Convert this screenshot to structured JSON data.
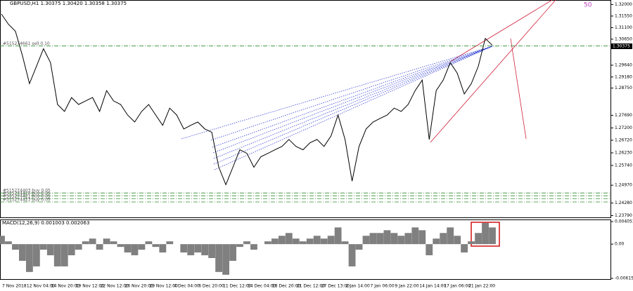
{
  "chart_data": [
    {
      "type": "line",
      "title": "GBPUSD,H1  1.30375 1.30420 1.30358 1.30375",
      "badge": "50",
      "color": "#000000",
      "values": [
        1.3163,
        1.3123,
        1.3096,
        1.3001,
        1.2892,
        1.296,
        1.3028,
        1.2974,
        1.2811,
        1.2784,
        1.2838,
        1.2811,
        1.2825,
        1.2838,
        1.2784,
        1.2865,
        1.2825,
        1.2811,
        1.277,
        1.2743,
        1.2784,
        1.2811,
        1.277,
        1.273,
        1.2797,
        1.277,
        1.2716,
        1.273,
        1.2743,
        1.2716,
        1.2703,
        1.2567,
        1.2499,
        1.2567,
        1.2635,
        1.2621,
        1.2567,
        1.2608,
        1.2621,
        1.2635,
        1.2648,
        1.2675,
        1.2648,
        1.2635,
        1.2662,
        1.2675,
        1.2648,
        1.2689,
        1.277,
        1.2675,
        1.2513,
        1.2648,
        1.2716,
        1.2743,
        1.2757,
        1.277,
        1.2797,
        1.2784,
        1.2811,
        1.2865,
        1.2906,
        1.2675,
        1.2865,
        1.2906,
        1.2974,
        1.2933,
        1.2852,
        1.2892,
        1.296,
        1.3068,
        1.3041
      ],
      "ylim": [
        1.2372,
        1.3212
      ],
      "yticks": [
        {
          "value": 1.32,
          "label": "1.32000"
        },
        {
          "value": 1.3155,
          "label": "1.31550"
        },
        {
          "value": 1.311,
          "label": "1.31100"
        },
        {
          "value": 1.3065,
          "label": "1.30650"
        },
        {
          "value": 1.2964,
          "label": "1.29640"
        },
        {
          "value": 1.2918,
          "label": "1.29180"
        },
        {
          "value": 1.2875,
          "label": "1.28750"
        },
        {
          "value": 1.2769,
          "label": "1.27690"
        },
        {
          "value": 1.272,
          "label": "1.27200"
        },
        {
          "value": 1.2672,
          "label": "1.26720"
        },
        {
          "value": 1.2623,
          "label": "1.26230"
        },
        {
          "value": 1.2574,
          "label": "1.25740"
        },
        {
          "value": 1.2497,
          "label": "1.24970"
        },
        {
          "value": 1.2428,
          "label": "1.24280"
        },
        {
          "value": 1.2379,
          "label": "1.23790"
        }
      ],
      "current_price": {
        "value": 1.30375,
        "label": "1.30375"
      },
      "orders": [
        {
          "label": "#515274661 sell 0.10",
          "price": 1.3039
        },
        {
          "label": "#515274403 buy 0.05",
          "price": 1.2467
        },
        {
          "label": "#515274420 buy 0.05",
          "price": 1.2456
        },
        {
          "label": "#515274421 buy 0.05",
          "price": 1.2445
        },
        {
          "label": "#515274423 buy 0.05",
          "price": 1.2432
        }
      ],
      "x_labels": [
        "7 Nov 2018",
        "12 Nov 04:00",
        "14 Nov 20:00",
        "19 Nov 12:00",
        "22 Nov 12:00",
        "26 Nov 20:00",
        "29 Nov 12:00",
        "4 Dec 04:00",
        "6 Dec 20:00",
        "11 Dec 12:00",
        "14 Dec 04:00",
        "18 Dec 20:00",
        "21 Dec 12:00",
        "27 Dec 13:00",
        "2 Jan 14:00",
        "7 Jan 06:00",
        "9 Jan 22:00",
        "14 Jan 14:00",
        "17 Jan 06:00",
        "21 Jan 22:00"
      ]
    },
    {
      "type": "bar",
      "title": "MACD(12,26,9) 0.001003 0.002063",
      "color": "#808080",
      "values": [
        0.0015,
        0.0005,
        -0.001,
        -0.003,
        -0.005,
        -0.004,
        -0.001,
        -0.002,
        -0.004,
        -0.004,
        -0.002,
        -0.001,
        0.0005,
        0.001,
        -0.001,
        0.001,
        0.0005,
        -0.0005,
        -0.0015,
        -0.002,
        -0.001,
        0.0005,
        -0.0005,
        -0.0015,
        0.0005,
        0.0,
        -0.0015,
        -0.002,
        -0.0015,
        -0.002,
        -0.0025,
        -0.005,
        -0.0055,
        -0.003,
        -0.0005,
        0.0005,
        -0.001,
        0.0,
        0.0005,
        0.001,
        0.0015,
        0.002,
        0.001,
        0.0005,
        0.001,
        0.0015,
        0.001,
        0.0015,
        0.003,
        0.0005,
        -0.004,
        -0.001,
        0.0015,
        0.002,
        0.002,
        0.0025,
        0.002,
        0.0015,
        0.002,
        0.003,
        0.0025,
        -0.002,
        0.001,
        0.002,
        0.003,
        0.0015,
        -0.0015,
        0.0005,
        0.002,
        0.0038,
        0.003
      ],
      "ylim": [
        -0.006151,
        0.004051
      ],
      "yticks": [
        0.004051,
        {
          "value": 0,
          "label": "0.00"
        },
        -0.006151
      ]
    }
  ]
}
